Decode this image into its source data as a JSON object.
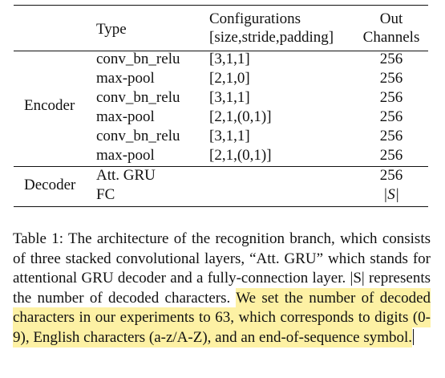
{
  "table": {
    "header": {
      "type": "Type",
      "config_line1": "Configurations",
      "config_line2": "[size,stride,padding]",
      "out_line1": "Out",
      "out_line2": "Channels"
    },
    "encoder": {
      "group": "Encoder",
      "rows": [
        {
          "type": "conv_bn_relu",
          "config": "[3,1,1]",
          "out": "256"
        },
        {
          "type": "max-pool",
          "config": "[2,1,0]",
          "out": "256"
        },
        {
          "type": "conv_bn_relu",
          "config": "[3,1,1]",
          "out": "256"
        },
        {
          "type": "max-pool",
          "config": "[2,1,(0,1)]",
          "out": "256"
        },
        {
          "type": "conv_bn_relu",
          "config": "[3,1,1]",
          "out": "256"
        },
        {
          "type": "max-pool",
          "config": "[2,1,(0,1)]",
          "out": "256"
        }
      ]
    },
    "decoder": {
      "group": "Decoder",
      "rows": [
        {
          "type": "Att. GRU",
          "config": "",
          "out": "256"
        },
        {
          "type": "FC",
          "config": "",
          "out": "|S|"
        }
      ]
    }
  },
  "caption": {
    "plain": "Table 1: The architecture of the recognition branch, which consists of three stacked convolutional layers, “Att. GRU” which stands for attentional GRU decoder and a fully-connection layer. |S| represents the number of decoded characters.",
    "highlighted": "We set the number of decoded characters in our experiments to 63, which corresponds to digits (0-9), English characters (a-z/A-Z), and an end-of-sequence symbol."
  },
  "colors": {
    "highlight": "#fdf1a4",
    "text": "#111111"
  }
}
